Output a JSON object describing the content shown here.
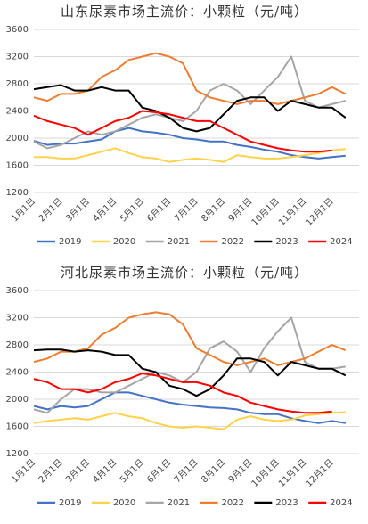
{
  "chart_data": [
    {
      "type": "line",
      "title": "山东尿素市场主流价：小颗粒（元/吨）",
      "categories": [
        "1月1日",
        null,
        "2月1日",
        null,
        "3月1日",
        null,
        "4月1日",
        null,
        "5月1日",
        null,
        "6月1日",
        null,
        "7月1日",
        null,
        "8月1日",
        null,
        "9月1日",
        null,
        "10月1日",
        null,
        "11月1日",
        null,
        "12月1日",
        null
      ],
      "ylim": [
        1200,
        3600
      ],
      "yticks": [
        1200,
        1600,
        2000,
        2400,
        2800,
        3200,
        3600
      ],
      "grid": true,
      "legend": "bottom",
      "series": [
        {
          "name": "2019",
          "color": "#4472c4",
          "values": [
            1960,
            1900,
            1920,
            1920,
            1950,
            1980,
            2100,
            2150,
            2100,
            2080,
            2050,
            2000,
            1980,
            1950,
            1950,
            1900,
            1870,
            1830,
            1800,
            1750,
            1720,
            1700,
            1720,
            1740
          ]
        },
        {
          "name": "2020",
          "color": "#ffd24c",
          "values": [
            1720,
            1720,
            1700,
            1700,
            1750,
            1800,
            1850,
            1780,
            1720,
            1700,
            1650,
            1680,
            1700,
            1680,
            1650,
            1750,
            1720,
            1700,
            1700,
            1720,
            1750,
            1780,
            1820,
            1840
          ]
        },
        {
          "name": "2021",
          "color": "#a5a5a5",
          "values": [
            1950,
            1850,
            1900,
            2000,
            2100,
            2050,
            2100,
            2200,
            2300,
            2350,
            2300,
            2250,
            2400,
            2700,
            2800,
            2700,
            2500,
            2700,
            2900,
            3200,
            2550,
            2450,
            2500,
            2550
          ]
        },
        {
          "name": "2022",
          "color": "#ed7d31",
          "values": [
            2600,
            2550,
            2650,
            2650,
            2700,
            2900,
            3000,
            3150,
            3200,
            3250,
            3200,
            3100,
            2700,
            2600,
            2550,
            2500,
            2550,
            2550,
            2500,
            2550,
            2600,
            2650,
            2750,
            2650
          ]
        },
        {
          "name": "2023",
          "color": "#000000",
          "values": [
            2720,
            2750,
            2780,
            2700,
            2700,
            2750,
            2700,
            2700,
            2450,
            2400,
            2300,
            2150,
            2100,
            2150,
            2350,
            2550,
            2600,
            2600,
            2400,
            2550,
            2500,
            2450,
            2450,
            2300
          ]
        },
        {
          "name": "2024",
          "color": "#ff0000",
          "values": [
            2330,
            2250,
            2200,
            2150,
            2050,
            2150,
            2250,
            2300,
            2400,
            2380,
            2350,
            2300,
            2250,
            2250,
            2150,
            2050,
            1950,
            1900,
            1850,
            1820,
            1800,
            1800,
            1820,
            null
          ]
        }
      ]
    },
    {
      "type": "line",
      "title": "河北尿素市场主流价：小颗粒（元/吨）",
      "categories": [
        "1月1日",
        null,
        "2月1日",
        null,
        "3月1日",
        null,
        "4月1日",
        null,
        "5月1日",
        null,
        "6月1日",
        null,
        "7月1日",
        null,
        "8月1日",
        null,
        "9月1日",
        null,
        "10月1日",
        null,
        "11月1日",
        null,
        "12月1日",
        null
      ],
      "ylim": [
        1200,
        3600
      ],
      "yticks": [
        1200,
        1600,
        2000,
        2400,
        2800,
        3200,
        3600
      ],
      "grid": true,
      "legend": "bottom",
      "series": [
        {
          "name": "2019",
          "color": "#4472c4",
          "values": [
            1900,
            1850,
            1900,
            1880,
            1900,
            2000,
            2100,
            2100,
            2050,
            2000,
            1950,
            1920,
            1900,
            1880,
            1870,
            1850,
            1800,
            1780,
            1780,
            1720,
            1680,
            1650,
            1680,
            1650
          ]
        },
        {
          "name": "2020",
          "color": "#ffd24c",
          "values": [
            1650,
            1680,
            1700,
            1720,
            1700,
            1750,
            1800,
            1750,
            1720,
            1650,
            1600,
            1580,
            1600,
            1580,
            1560,
            1700,
            1750,
            1700,
            1680,
            1700,
            1760,
            1780,
            1800,
            1810
          ]
        },
        {
          "name": "2021",
          "color": "#a5a5a5",
          "values": [
            1850,
            1800,
            2000,
            2150,
            2150,
            2100,
            2100,
            2200,
            2300,
            2400,
            2350,
            2250,
            2400,
            2750,
            2850,
            2700,
            2400,
            2750,
            3000,
            3200,
            2550,
            2450,
            2450,
            2480
          ]
        },
        {
          "name": "2022",
          "color": "#ed7d31",
          "values": [
            2550,
            2600,
            2700,
            2700,
            2750,
            2950,
            3050,
            3200,
            3250,
            3280,
            3250,
            3100,
            2750,
            2650,
            2550,
            2500,
            2550,
            2600,
            2500,
            2550,
            2600,
            2700,
            2800,
            2720
          ]
        },
        {
          "name": "2023",
          "color": "#000000",
          "values": [
            2720,
            2730,
            2730,
            2700,
            2720,
            2700,
            2650,
            2650,
            2450,
            2400,
            2200,
            2150,
            2050,
            2150,
            2350,
            2600,
            2600,
            2550,
            2350,
            2550,
            2500,
            2450,
            2450,
            2350
          ]
        },
        {
          "name": "2024",
          "color": "#ff0000",
          "values": [
            2300,
            2250,
            2150,
            2150,
            2100,
            2150,
            2250,
            2300,
            2380,
            2350,
            2300,
            2250,
            2250,
            2200,
            2100,
            2050,
            1950,
            1900,
            1850,
            1820,
            1800,
            1800,
            1820,
            null
          ]
        }
      ]
    }
  ]
}
